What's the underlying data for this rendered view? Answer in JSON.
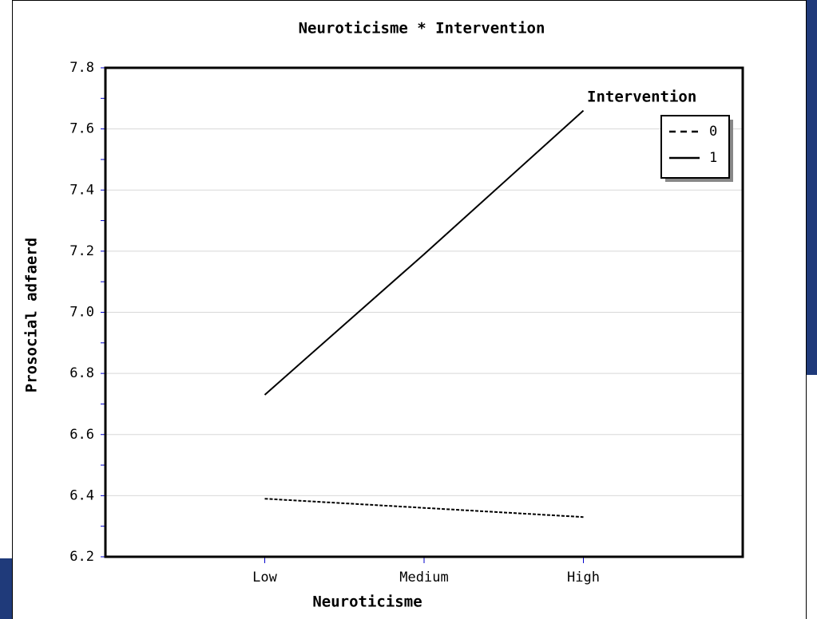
{
  "chart_data": {
    "type": "line",
    "title": "Neuroticisme * Intervention",
    "x_label": "Neuroticisme",
    "y_label": "Prosocial adfaerd",
    "categories": [
      "Low",
      "Medium",
      "High"
    ],
    "series": [
      {
        "name": "0",
        "color": "#000000",
        "dash": true,
        "values": [
          6.39,
          6.36,
          6.33
        ]
      },
      {
        "name": "1",
        "color": "#000000",
        "dash": false,
        "values": [
          6.73,
          7.19,
          7.66
        ]
      }
    ],
    "ylim": [
      6.2,
      7.8
    ],
    "yticks": [
      6.2,
      6.4,
      6.6,
      6.8,
      {
        "value": 7,
        "label": "7.0"
      },
      7.2,
      7.4,
      7.6,
      7.8
    ],
    "yminorticks": [
      6.3,
      6.5,
      6.7,
      6.9,
      7.1,
      7.3,
      7.5,
      7.7
    ],
    "grid": true,
    "legend_title": "Intervention",
    "legend_position": "upper right"
  }
}
